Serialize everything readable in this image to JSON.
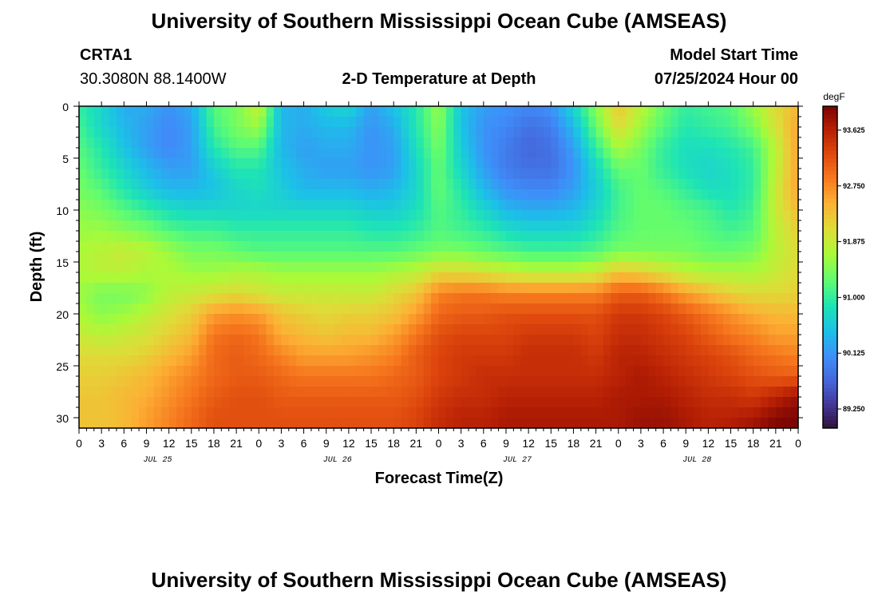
{
  "chart_data": {
    "type": "heatmap",
    "title": "University of Southern Mississippi Ocean Cube (AMSEAS)",
    "subtitle": "2-D Temperature at Depth",
    "station": {
      "name": "CRTA1",
      "location": "30.3080N  88.1400W"
    },
    "model_start": {
      "label": "Model Start Time",
      "value": "07/25/2024 Hour 00"
    },
    "xlabel": "Forecast Time(Z)",
    "ylabel": "Depth (ft)",
    "x_range_hours": [
      0,
      96
    ],
    "x_tick_step_hours": 3,
    "x_tick_labels": [
      "0",
      "3",
      "6",
      "9",
      "12",
      "15",
      "18",
      "21",
      "0",
      "3",
      "6",
      "9",
      "12",
      "15",
      "18",
      "21",
      "0",
      "3",
      "6",
      "9",
      "12",
      "15",
      "18",
      "21",
      "0",
      "3",
      "6",
      "9",
      "12",
      "15",
      "18",
      "21",
      "0"
    ],
    "day_labels": [
      {
        "text": "JUL 25",
        "hour": 10.5
      },
      {
        "text": "JUL 26",
        "hour": 34.5
      },
      {
        "text": "JUL 27",
        "hour": 58.5
      },
      {
        "text": "JUL 28",
        "hour": 82.5
      }
    ],
    "y_range_ft": [
      0,
      31
    ],
    "y_ticks": [
      "0",
      "5",
      "10",
      "15",
      "20",
      "25",
      "30"
    ],
    "y_tick_values": [
      0,
      5,
      10,
      15,
      20,
      25,
      30
    ],
    "colorbar": {
      "unit": "degF",
      "min": 88.95,
      "max": 94.0,
      "ticks": [
        "93.625",
        "92.750",
        "91.875",
        "91.000",
        "90.125",
        "89.250"
      ],
      "tick_values": [
        93.625,
        92.75,
        91.875,
        91.0,
        90.125,
        89.25
      ]
    },
    "grid_times_hours": [
      0,
      3,
      6,
      9,
      12,
      15,
      18,
      21,
      24,
      27,
      30,
      33,
      36,
      39,
      42,
      45,
      48,
      51,
      54,
      57,
      60,
      63,
      66,
      69,
      72,
      75,
      78,
      81,
      84,
      87,
      90,
      93,
      96
    ],
    "grid_depths_ft": [
      0,
      2,
      4,
      6,
      8,
      10,
      12,
      14,
      16,
      18,
      20,
      22,
      24,
      26,
      28,
      30,
      31
    ],
    "temperature_degF": [
      [
        91.0,
        90.7,
        90.3,
        90.3,
        90.1,
        90.3,
        91.2,
        91.4,
        91.9,
        90.4,
        90.3,
        90.6,
        90.7,
        90.2,
        90.5,
        90.9,
        91.6,
        90.5,
        90.2,
        90.1,
        90.0,
        90.1,
        90.7,
        91.5,
        92.3,
        91.8,
        91.3,
        91.0,
        91.1,
        91.2,
        91.6,
        92.1,
        92.4
      ],
      [
        91.1,
        90.7,
        90.4,
        90.2,
        90.0,
        90.2,
        91.1,
        91.4,
        91.6,
        90.4,
        90.3,
        90.4,
        90.4,
        90.1,
        90.3,
        90.9,
        91.5,
        90.5,
        90.1,
        90.0,
        89.8,
        89.9,
        90.4,
        91.3,
        92.1,
        91.6,
        91.2,
        90.9,
        91.0,
        91.1,
        91.4,
        92.0,
        92.6
      ],
      [
        91.2,
        90.9,
        90.5,
        90.2,
        90.0,
        90.2,
        90.9,
        91.2,
        91.2,
        90.4,
        90.2,
        90.3,
        90.3,
        90.1,
        90.2,
        90.8,
        91.4,
        90.6,
        90.1,
        89.9,
        89.7,
        89.8,
        90.2,
        91.0,
        91.7,
        91.4,
        91.0,
        90.8,
        90.8,
        90.9,
        91.1,
        91.8,
        92.6
      ],
      [
        91.3,
        91.0,
        90.7,
        90.4,
        90.2,
        90.2,
        90.6,
        90.9,
        90.9,
        90.5,
        90.3,
        90.2,
        90.2,
        90.1,
        90.2,
        90.7,
        91.3,
        90.7,
        90.2,
        89.9,
        89.8,
        89.8,
        90.1,
        90.7,
        91.3,
        91.3,
        91.0,
        90.8,
        90.7,
        90.8,
        91.0,
        91.8,
        92.6
      ],
      [
        91.4,
        91.2,
        90.9,
        90.6,
        90.4,
        90.4,
        90.5,
        90.7,
        90.8,
        90.6,
        90.4,
        90.4,
        90.4,
        90.3,
        90.4,
        90.7,
        91.3,
        90.9,
        90.4,
        90.1,
        90.0,
        90.0,
        90.2,
        90.6,
        91.1,
        91.3,
        91.2,
        91.0,
        90.8,
        90.8,
        91.0,
        91.9,
        92.6
      ],
      [
        91.5,
        91.4,
        91.2,
        91.0,
        90.8,
        90.7,
        90.7,
        90.7,
        90.7,
        90.7,
        90.7,
        90.7,
        90.7,
        90.6,
        90.6,
        90.8,
        91.2,
        91.0,
        90.7,
        90.4,
        90.3,
        90.3,
        90.4,
        90.7,
        91.1,
        91.3,
        91.3,
        91.2,
        91.1,
        90.9,
        91.1,
        91.9,
        92.4
      ],
      [
        91.6,
        91.6,
        91.5,
        91.4,
        91.2,
        91.1,
        91.1,
        91.0,
        91.0,
        91.0,
        91.0,
        91.0,
        91.0,
        90.9,
        90.9,
        91.0,
        91.2,
        91.1,
        91.0,
        90.8,
        90.7,
        90.7,
        90.7,
        90.9,
        91.2,
        91.3,
        91.3,
        91.3,
        91.2,
        91.1,
        91.2,
        91.8,
        92.2
      ],
      [
        91.7,
        91.8,
        91.9,
        91.8,
        91.6,
        91.4,
        91.4,
        91.3,
        91.2,
        91.2,
        91.2,
        91.2,
        91.2,
        91.2,
        91.2,
        91.3,
        91.4,
        91.4,
        91.3,
        91.2,
        91.1,
        91.1,
        91.1,
        91.2,
        91.4,
        91.4,
        91.4,
        91.4,
        91.3,
        91.3,
        91.4,
        91.8,
        92.1
      ],
      [
        91.7,
        91.8,
        91.8,
        91.7,
        91.7,
        91.6,
        91.6,
        91.7,
        91.7,
        91.6,
        91.6,
        91.6,
        91.6,
        91.6,
        91.7,
        91.8,
        92.1,
        92.1,
        92.0,
        91.9,
        91.8,
        91.8,
        91.8,
        91.9,
        92.3,
        92.2,
        92.0,
        91.8,
        91.7,
        91.7,
        91.7,
        91.9,
        92.1
      ],
      [
        91.6,
        91.4,
        91.4,
        91.5,
        91.8,
        91.9,
        92.0,
        92.1,
        92.0,
        91.9,
        91.9,
        91.9,
        91.9,
        91.9,
        92.1,
        92.3,
        92.8,
        92.9,
        92.9,
        92.8,
        92.8,
        92.8,
        92.8,
        92.8,
        93.1,
        93.1,
        92.9,
        92.6,
        92.4,
        92.2,
        92.1,
        92.1,
        92.2
      ],
      [
        91.7,
        91.5,
        91.6,
        91.8,
        92.0,
        92.2,
        92.6,
        92.7,
        92.6,
        92.3,
        92.2,
        92.1,
        92.2,
        92.2,
        92.3,
        92.6,
        93.0,
        93.1,
        93.1,
        93.2,
        93.2,
        93.2,
        93.2,
        93.2,
        93.4,
        93.4,
        93.3,
        93.1,
        92.9,
        92.7,
        92.5,
        92.4,
        92.4
      ],
      [
        91.9,
        91.8,
        91.9,
        92.0,
        92.2,
        92.4,
        92.9,
        93.0,
        92.9,
        92.5,
        92.4,
        92.3,
        92.4,
        92.4,
        92.6,
        92.9,
        93.2,
        93.3,
        93.3,
        93.3,
        93.4,
        93.4,
        93.4,
        93.3,
        93.5,
        93.5,
        93.4,
        93.3,
        93.1,
        92.9,
        92.8,
        92.6,
        92.6
      ],
      [
        92.1,
        92.1,
        92.1,
        92.2,
        92.4,
        92.6,
        93.0,
        93.1,
        93.0,
        92.8,
        92.6,
        92.6,
        92.6,
        92.7,
        92.8,
        93.1,
        93.3,
        93.4,
        93.4,
        93.4,
        93.5,
        93.5,
        93.5,
        93.4,
        93.6,
        93.6,
        93.5,
        93.4,
        93.3,
        93.2,
        93.0,
        92.9,
        92.8
      ],
      [
        92.2,
        92.2,
        92.3,
        92.4,
        92.6,
        92.8,
        93.0,
        93.1,
        93.1,
        93.0,
        92.9,
        92.9,
        92.9,
        92.9,
        93.0,
        93.1,
        93.3,
        93.4,
        93.5,
        93.5,
        93.5,
        93.5,
        93.5,
        93.5,
        93.6,
        93.7,
        93.6,
        93.5,
        93.4,
        93.3,
        93.2,
        93.1,
        93.1
      ],
      [
        92.3,
        92.3,
        92.4,
        92.5,
        92.7,
        92.9,
        93.1,
        93.2,
        93.2,
        93.1,
        93.1,
        93.1,
        93.1,
        93.1,
        93.1,
        93.2,
        93.4,
        93.5,
        93.5,
        93.6,
        93.6,
        93.6,
        93.6,
        93.6,
        93.7,
        93.7,
        93.7,
        93.6,
        93.5,
        93.5,
        93.4,
        93.6,
        93.8
      ],
      [
        92.3,
        92.3,
        92.4,
        92.6,
        92.8,
        93.0,
        93.2,
        93.2,
        93.2,
        93.2,
        93.2,
        93.2,
        93.2,
        93.2,
        93.2,
        93.3,
        93.5,
        93.6,
        93.6,
        93.7,
        93.7,
        93.7,
        93.7,
        93.7,
        93.7,
        93.8,
        93.8,
        93.7,
        93.6,
        93.6,
        93.7,
        93.9,
        94.0
      ],
      [
        92.3,
        92.3,
        92.4,
        92.6,
        92.8,
        93.0,
        93.2,
        93.2,
        93.2,
        93.2,
        93.2,
        93.2,
        93.2,
        93.2,
        93.2,
        93.3,
        93.5,
        93.6,
        93.6,
        93.7,
        93.7,
        93.7,
        93.7,
        93.7,
        93.7,
        93.8,
        93.8,
        93.7,
        93.6,
        93.7,
        93.8,
        94.0,
        94.0
      ]
    ]
  }
}
